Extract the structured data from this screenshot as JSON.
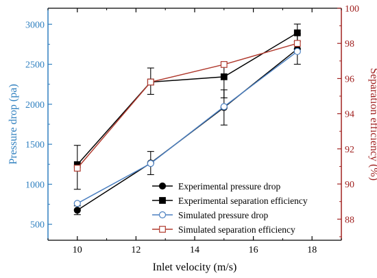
{
  "chart_data": {
    "type": "line",
    "xlabel": "Inlet velocity (m/s)",
    "ylabel_left": "Pressure drop (pa)",
    "ylabel_right": "Separation efficiency (%)",
    "xlim": [
      9,
      19
    ],
    "ylim_left": [
      300,
      3200
    ],
    "ylim_right": [
      86.8,
      100
    ],
    "x_ticks": [
      10,
      12,
      14,
      16,
      18
    ],
    "y_left_ticks": [
      500,
      1000,
      1500,
      2000,
      2500,
      3000
    ],
    "y_right_ticks": [
      88,
      90,
      92,
      94,
      96,
      98,
      100
    ],
    "colors": {
      "left_axis": "#2e7fbf",
      "right_axis": "#a0201f",
      "experimental": "#000000",
      "simulated_pressure": "#4a7fc0",
      "simulated_efficiency": "#b03a2e"
    },
    "legend_position": "bottom-right",
    "series": [
      {
        "name": "Experimental pressure drop",
        "axis": "left",
        "marker": "filled-circle",
        "x": [
          10,
          12.5,
          15,
          17.5
        ],
        "y": [
          675,
          1265,
          1960,
          2690
        ],
        "err_low": [
          620,
          1120,
          1740,
          2500
        ],
        "err_high": [
          730,
          1410,
          2180,
          2880
        ]
      },
      {
        "name": "Experimental separation efficiency",
        "axis": "right",
        "marker": "filled-square",
        "x": [
          10,
          12.5,
          15,
          17.5
        ],
        "y": [
          91.1,
          95.8,
          96.1,
          98.6
        ],
        "err_low": [
          89.7,
          95.1,
          94.9,
          98.1
        ],
        "err_high": [
          92.2,
          96.6,
          96.9,
          99.1
        ]
      },
      {
        "name": "Simulated pressure drop",
        "axis": "left",
        "marker": "open-circle",
        "x": [
          10,
          12.5,
          15,
          17.5
        ],
        "y": [
          760,
          1260,
          1970,
          2660
        ]
      },
      {
        "name": "Simulated separation efficiency",
        "axis": "right",
        "marker": "open-square",
        "x": [
          10,
          12.5,
          15,
          17.5
        ],
        "y": [
          90.9,
          95.8,
          96.8,
          98.0
        ]
      }
    ]
  }
}
